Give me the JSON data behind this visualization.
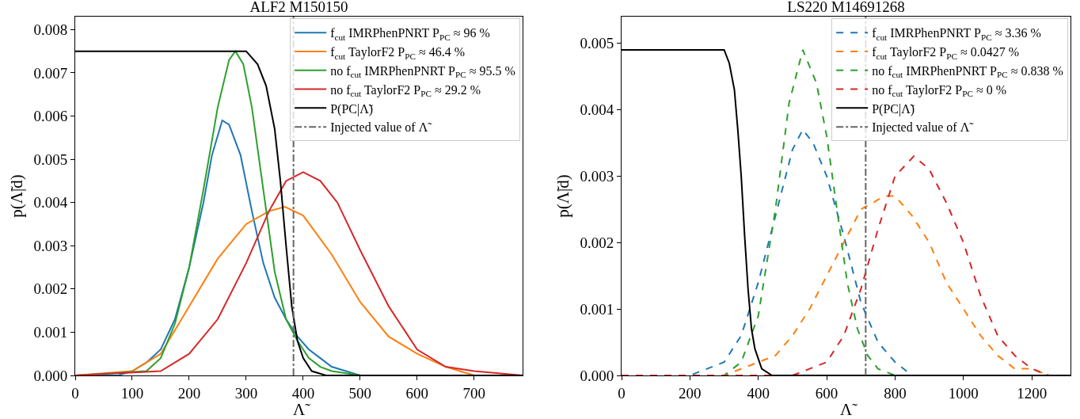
{
  "chart_data": [
    {
      "type": "line",
      "title": "ALF2 M150150",
      "xlabel": "Λ̃",
      "ylabel": "p(Λ̃|d)",
      "xlim": [
        0,
        785
      ],
      "ylim": [
        0,
        0.0083
      ],
      "xticks": [
        0,
        100,
        200,
        300,
        400,
        500,
        600,
        700
      ],
      "yticks": [
        {
          "value": 0,
          "label": "0.000"
        },
        0.001,
        0.002,
        0.003,
        0.004,
        0.005,
        0.006,
        0.007,
        0.008
      ],
      "grid": false,
      "legend": "top right",
      "series": [
        {
          "name": "f$_{cut}$ IMRPhenPNRT P$_{PC}$ ≈ 96 %",
          "color": "#1f77b4",
          "line_style": "solid",
          "x": [
            0,
            75,
            100,
            125,
            150,
            175,
            200,
            225,
            240,
            258,
            270,
            290,
            310,
            330,
            350,
            370,
            390,
            410,
            430,
            450,
            475,
            500,
            550,
            785
          ],
          "values": [
            0,
            0,
            0.0001,
            0.0003,
            0.0006,
            0.0013,
            0.0025,
            0.004,
            0.0051,
            0.0059,
            0.0058,
            0.0051,
            0.0038,
            0.0026,
            0.0018,
            0.0013,
            0.0009,
            0.0006,
            0.0004,
            0.0002,
            0.0001,
            0,
            0,
            0
          ]
        },
        {
          "name": "f$_{cut}$ TaylorF2 P$_{PC}$ ≈ 46.4 %",
          "color": "#ff7f0e",
          "line_style": "solid",
          "x": [
            0,
            100,
            150,
            200,
            250,
            300,
            340,
            368,
            400,
            450,
            500,
            550,
            600,
            650,
            700,
            785
          ],
          "values": [
            0,
            0.0001,
            0.0005,
            0.0016,
            0.0027,
            0.0035,
            0.0038,
            0.0039,
            0.0037,
            0.0028,
            0.0017,
            0.0009,
            0.0005,
            0.0002,
            0,
            0
          ]
        },
        {
          "name": "no f$_{cut}$ IMRPhenPNRT P$_{PC}$ ≈ 95.5 %",
          "color": "#2ca02c",
          "line_style": "solid",
          "x": [
            0,
            125,
            150,
            175,
            200,
            225,
            250,
            270,
            281,
            295,
            310,
            330,
            350,
            370,
            390,
            410,
            430,
            450,
            500,
            785
          ],
          "values": [
            0,
            0.0001,
            0.0004,
            0.0012,
            0.0025,
            0.0043,
            0.0062,
            0.0073,
            0.0075,
            0.0072,
            0.0062,
            0.0043,
            0.0024,
            0.0013,
            0.0008,
            0.0004,
            0.0002,
            0.0001,
            0,
            0
          ]
        },
        {
          "name": "no f$_{cut}$ TaylorF2 P$_{PC}$ ≈ 29.2 %",
          "color": "#d62728",
          "line_style": "solid",
          "x": [
            0,
            150,
            200,
            250,
            300,
            340,
            370,
            400,
            430,
            460,
            500,
            550,
            600,
            650,
            700,
            785
          ],
          "values": [
            0,
            0.0001,
            0.0005,
            0.0013,
            0.0026,
            0.0038,
            0.0045,
            0.0047,
            0.0045,
            0.004,
            0.0029,
            0.0016,
            0.0006,
            0.0002,
            0.0001,
            0
          ]
        },
        {
          "name": "P(PC|Λ̃)",
          "color": "#000000",
          "line_style": "solid",
          "x": [
            0,
            250,
            300,
            320,
            335,
            350,
            360,
            370,
            380,
            390,
            400,
            415,
            440,
            785
          ],
          "values": [
            0.0075,
            0.0075,
            0.0075,
            0.0072,
            0.0067,
            0.0057,
            0.0045,
            0.003,
            0.0016,
            0.0008,
            0.0004,
            0.0001,
            0,
            0
          ]
        }
      ],
      "ref_lines": [
        {
          "axis": "x",
          "value": 383,
          "label": "Injected value of Λ̃",
          "color": "#666666",
          "line_style": "dashdot"
        }
      ]
    },
    {
      "type": "line",
      "title": "LS220 M14691268",
      "xlabel": "Λ̃",
      "ylabel": "p(Λ̃|d)",
      "xlim": [
        0,
        1313
      ],
      "ylim": [
        0,
        0.0054
      ],
      "xticks": [
        0,
        200,
        400,
        600,
        800,
        1000,
        1200
      ],
      "yticks": [
        {
          "value": 0,
          "label": "0.000"
        },
        0.001,
        0.002,
        0.003,
        0.004,
        0.005
      ],
      "grid": false,
      "legend": "top right",
      "series": [
        {
          "name": "f$_{cut}$ IMRPhenPNRT P$_{PC}$ ≈ 3.36 %",
          "color": "#1f77b4",
          "line_style": "dashed",
          "x": [
            0,
            200,
            250,
            300,
            350,
            400,
            450,
            500,
            530,
            560,
            600,
            650,
            700,
            750,
            800,
            850,
            1313
          ],
          "values": [
            0,
            0,
            0.0001,
            0.0002,
            0.0006,
            0.0014,
            0.0024,
            0.0034,
            0.0037,
            0.0035,
            0.003,
            0.0021,
            0.0011,
            0.0005,
            0.0002,
            0,
            0
          ]
        },
        {
          "name": "f$_{cut}$ TaylorF2 P$_{PC}$ ≈ 0.0427 %",
          "color": "#ff7f0e",
          "line_style": "dashed",
          "x": [
            0,
            300,
            400,
            450,
            500,
            550,
            600,
            650,
            700,
            770,
            800,
            850,
            900,
            950,
            1000,
            1050,
            1100,
            1150,
            1200,
            1250,
            1313
          ],
          "values": [
            0,
            0,
            0.0002,
            0.0003,
            0.0006,
            0.001,
            0.0015,
            0.002,
            0.0025,
            0.0027,
            0.0027,
            0.0024,
            0.002,
            0.0014,
            0.001,
            0.0006,
            0.0003,
            0.0001,
            0.0001,
            0,
            0
          ]
        },
        {
          "name": "no f$_{cut}$ IMRPhenPNRT P$_{PC}$ ≈ 0.838 %",
          "color": "#2ca02c",
          "line_style": "dashed",
          "x": [
            0,
            300,
            350,
            400,
            450,
            490,
            530,
            570,
            600,
            630,
            660,
            690,
            720,
            750,
            800,
            1313
          ],
          "values": [
            0,
            0,
            0.0002,
            0.0009,
            0.0025,
            0.0041,
            0.0049,
            0.0044,
            0.0036,
            0.0025,
            0.0014,
            0.0007,
            0.0003,
            0.0001,
            0,
            0
          ]
        },
        {
          "name": "no f$_{cut}$ TaylorF2 P$_{PC}$ ≈ 0 %",
          "color": "#d62728",
          "line_style": "dashed",
          "x": [
            0,
            500,
            550,
            600,
            650,
            700,
            750,
            800,
            855,
            900,
            950,
            1000,
            1050,
            1100,
            1150,
            1200,
            1250,
            1313
          ],
          "values": [
            0,
            0,
            0.0001,
            0.0002,
            0.0006,
            0.0013,
            0.0022,
            0.003,
            0.0033,
            0.0031,
            0.0026,
            0.002,
            0.0012,
            0.0006,
            0.0003,
            0.0001,
            0,
            0
          ]
        },
        {
          "name": "P(PC|Λ̃)",
          "color": "#000000",
          "line_style": "solid",
          "x": [
            0,
            280,
            300,
            315,
            330,
            340,
            350,
            360,
            370,
            380,
            390,
            410,
            440,
            1313
          ],
          "values": [
            0.0049,
            0.0049,
            0.0049,
            0.0047,
            0.0043,
            0.0037,
            0.003,
            0.0021,
            0.0013,
            0.0007,
            0.0004,
            0.0001,
            0,
            0
          ]
        }
      ],
      "ref_lines": [
        {
          "axis": "x",
          "value": 714,
          "label": "Injected value of Λ̃",
          "color": "#666666",
          "line_style": "dashdot"
        }
      ]
    }
  ]
}
